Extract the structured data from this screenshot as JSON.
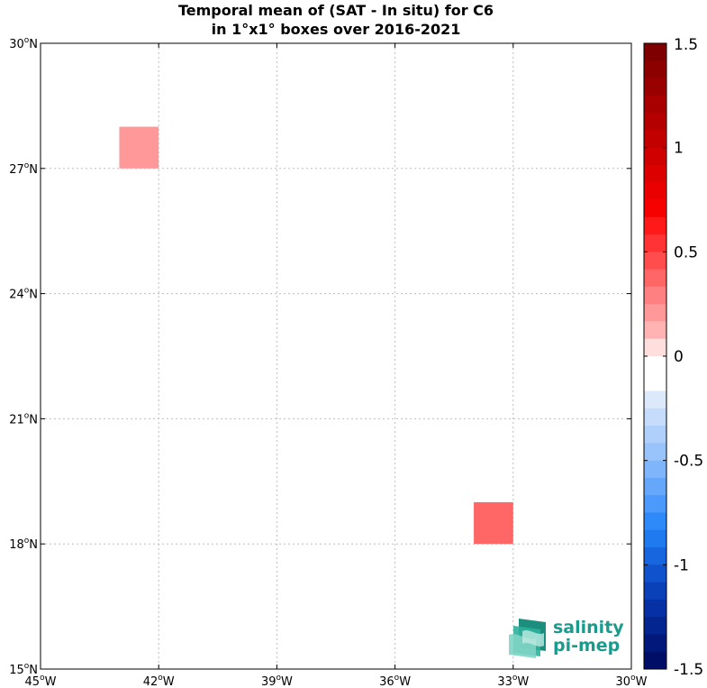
{
  "chart_data": {
    "type": "heatmap",
    "title_lines": [
      "Temporal mean of (SAT - In situ) for C6",
      "in 1°x1° boxes over 2016-2021"
    ],
    "x_ticks": [
      {
        "value": -45,
        "num": "45",
        "hemi": "W"
      },
      {
        "value": -42,
        "num": "42",
        "hemi": "W"
      },
      {
        "value": -39,
        "num": "39",
        "hemi": "W"
      },
      {
        "value": -36,
        "num": "36",
        "hemi": "W"
      },
      {
        "value": -33,
        "num": "33",
        "hemi": "W"
      },
      {
        "value": -30,
        "num": "30",
        "hemi": "W"
      }
    ],
    "y_ticks": [
      {
        "value": 30,
        "num": "30",
        "hemi": "N"
      },
      {
        "value": 27,
        "num": "27",
        "hemi": "N"
      },
      {
        "value": 24,
        "num": "24",
        "hemi": "N"
      },
      {
        "value": 21,
        "num": "21",
        "hemi": "N"
      },
      {
        "value": 18,
        "num": "18",
        "hemi": "N"
      },
      {
        "value": 15,
        "num": "15",
        "hemi": "N"
      }
    ],
    "xlim": [
      -45,
      -30
    ],
    "ylim": [
      15,
      30
    ],
    "grid": true,
    "cells": [
      {
        "lon_min": -43,
        "lon_max": -42,
        "lat_min": 27,
        "lat_max": 28,
        "value": 0.35,
        "color": "#ff9999"
      },
      {
        "lon_min": -34,
        "lon_max": -33,
        "lat_min": 18,
        "lat_max": 19,
        "value": 0.55,
        "color": "#ff6666"
      }
    ],
    "colorbar": {
      "range": [
        -1.5,
        1.5
      ],
      "ticks": [
        {
          "value": 1.5,
          "label": "1.5"
        },
        {
          "value": 1,
          "label": "1"
        },
        {
          "value": 0.5,
          "label": "0.5"
        },
        {
          "value": 0,
          "label": "0"
        },
        {
          "value": -0.5,
          "label": "-0.5"
        },
        {
          "value": -1,
          "label": "-1"
        },
        {
          "value": -1.5,
          "label": "-1.5"
        }
      ],
      "colors_top_to_bottom": [
        "#7f0000",
        "#8c0000",
        "#990000",
        "#a80000",
        "#b50000",
        "#c20000",
        "#d00000",
        "#dd0000",
        "#ea0000",
        "#f70000",
        "#ff1a1a",
        "#ff3333",
        "#ff4d4d",
        "#ff6666",
        "#ff8080",
        "#ff9999",
        "#ffb3b3",
        "#ffdede",
        "#ffffff",
        "#ffffff",
        "#dbe9fb",
        "#c5dcfa",
        "#afd0fb",
        "#98c4fb",
        "#7fb5fb",
        "#65a7fb",
        "#4b99fa",
        "#2e8af9",
        "#1f7af0",
        "#1766df",
        "#1052cc",
        "#0a40b8",
        "#0531a4",
        "#032590",
        "#02197b",
        "#010e67"
      ]
    }
  },
  "logo": {
    "line1": "salinity",
    "line2": "pi-mep",
    "color": "#1b9a8e"
  }
}
